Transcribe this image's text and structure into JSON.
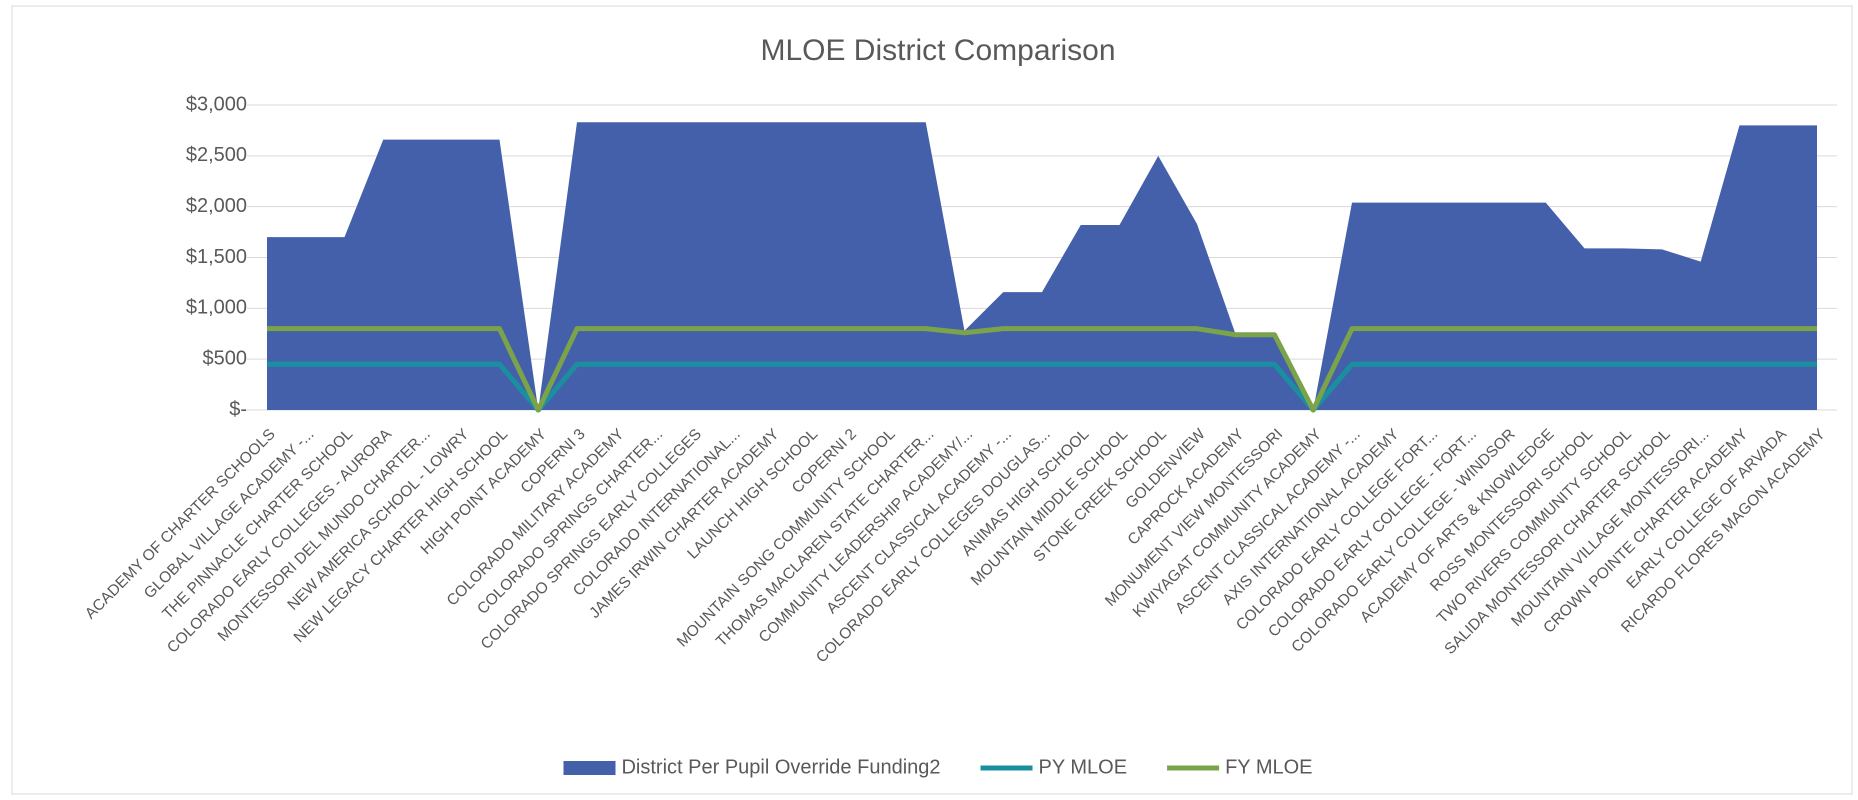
{
  "chart_data": {
    "type": "area-line",
    "title": "MLOE District Comparison",
    "categories": [
      "ACADEMY OF CHARTER SCHOOLS",
      "GLOBAL VILLAGE ACADEMY -...",
      "THE PINNACLE CHARTER SCHOOL",
      "COLORADO EARLY COLLEGES - AURORA",
      "MONTESSORI DEL MUNDO CHARTER...",
      "NEW AMERICA SCHOOL - LOWRY",
      "NEW LEGACY CHARTER HIGH SCHOOL",
      "HIGH POINT ACADEMY",
      "COPERNI 3",
      "COLORADO MILITARY ACADEMY",
      "COLORADO SPRINGS CHARTER...",
      "COLORADO SPRINGS EARLY COLLEGES",
      "COLORADO INTERNATIONAL...",
      "JAMES IRWIN CHARTER ACADEMY",
      "LAUNCH HIGH SCHOOL",
      "COPERNI 2",
      "MOUNTAIN SONG COMMUNITY SCHOOL",
      "THOMAS MACLAREN STATE CHARTER...",
      "COMMUNITY LEADERSHIP ACADEMY/...",
      "ASCENT CLASSICAL ACADEMY -...",
      "COLORADO EARLY COLLEGES DOUGLAS...",
      "ANIMAS HIGH SCHOOL",
      "MOUNTAIN MIDDLE SCHOOL",
      "STONE CREEK SCHOOL",
      "GOLDENVIEW",
      "CAPROCK ACADEMY",
      "MONUMENT VIEW MONTESSORI",
      "KWIYAGAT COMMUNITY ACADEMY",
      "ASCENT CLASSICAL ACADEMY -...",
      "AXIS INTERNATIONAL ACADEMY",
      "COLORADO EARLY COLLEGE FORT...",
      "COLORADO EARLY COLLEGE - FORT...",
      "COLORADO EARLY COLLEGE - WINDSOR",
      "ACADEMY OF ARTS & KNOWLEDGE",
      "ROSS MONTESSORI SCHOOL",
      "TWO RIVERS COMMUNITY SCHOOL",
      "SALIDA MONTESSORI CHARTER SCHOOL",
      "MOUNTAIN VILLAGE MONTESSORI...",
      "CROWN POINTE CHARTER ACADEMY",
      "EARLY COLLEGE OF ARVADA",
      "RICARDO FLORES MAGON ACADEMY"
    ],
    "series": [
      {
        "name": "District Per Pupil Override Funding2",
        "kind": "area",
        "color": "#4560aa",
        "values": [
          1700,
          1700,
          1700,
          2660,
          2660,
          2660,
          2660,
          0,
          2830,
          2830,
          2830,
          2830,
          2830,
          2830,
          2830,
          2830,
          2830,
          2830,
          780,
          1160,
          1160,
          1820,
          1820,
          2500,
          1830,
          740,
          740,
          0,
          2040,
          2040,
          2040,
          2040,
          2040,
          2040,
          1590,
          1590,
          1580,
          1460,
          2800,
          2800,
          2800
        ]
      },
      {
        "name": "PY MLOE",
        "kind": "line",
        "color": "#1a8fa0",
        "values": [
          450,
          450,
          450,
          450,
          450,
          450,
          450,
          0,
          450,
          450,
          450,
          450,
          450,
          450,
          450,
          450,
          450,
          450,
          450,
          450,
          450,
          450,
          450,
          450,
          450,
          450,
          450,
          0,
          450,
          450,
          450,
          450,
          450,
          450,
          450,
          450,
          450,
          450,
          450,
          450,
          450
        ]
      },
      {
        "name": "FY MLOE",
        "kind": "line",
        "color": "#7aa34a",
        "values": [
          800,
          800,
          800,
          800,
          800,
          800,
          800,
          0,
          800,
          800,
          800,
          800,
          800,
          800,
          800,
          800,
          800,
          800,
          760,
          800,
          800,
          800,
          800,
          800,
          800,
          740,
          740,
          0,
          800,
          800,
          800,
          800,
          800,
          800,
          800,
          800,
          800,
          800,
          800,
          800,
          800
        ]
      }
    ],
    "ylim": [
      0,
      3000
    ],
    "yticks": [
      {
        "value": 0,
        "label": "$-"
      },
      {
        "value": 500,
        "label": "$500"
      },
      {
        "value": 1000,
        "label": "$1,000"
      },
      {
        "value": 1500,
        "label": "$1,500"
      },
      {
        "value": 2000,
        "label": "$2,000"
      },
      {
        "value": 2500,
        "label": "$2,500"
      },
      {
        "value": 3000,
        "label": "$3,000"
      }
    ],
    "grid": true,
    "legend": "bottom"
  }
}
